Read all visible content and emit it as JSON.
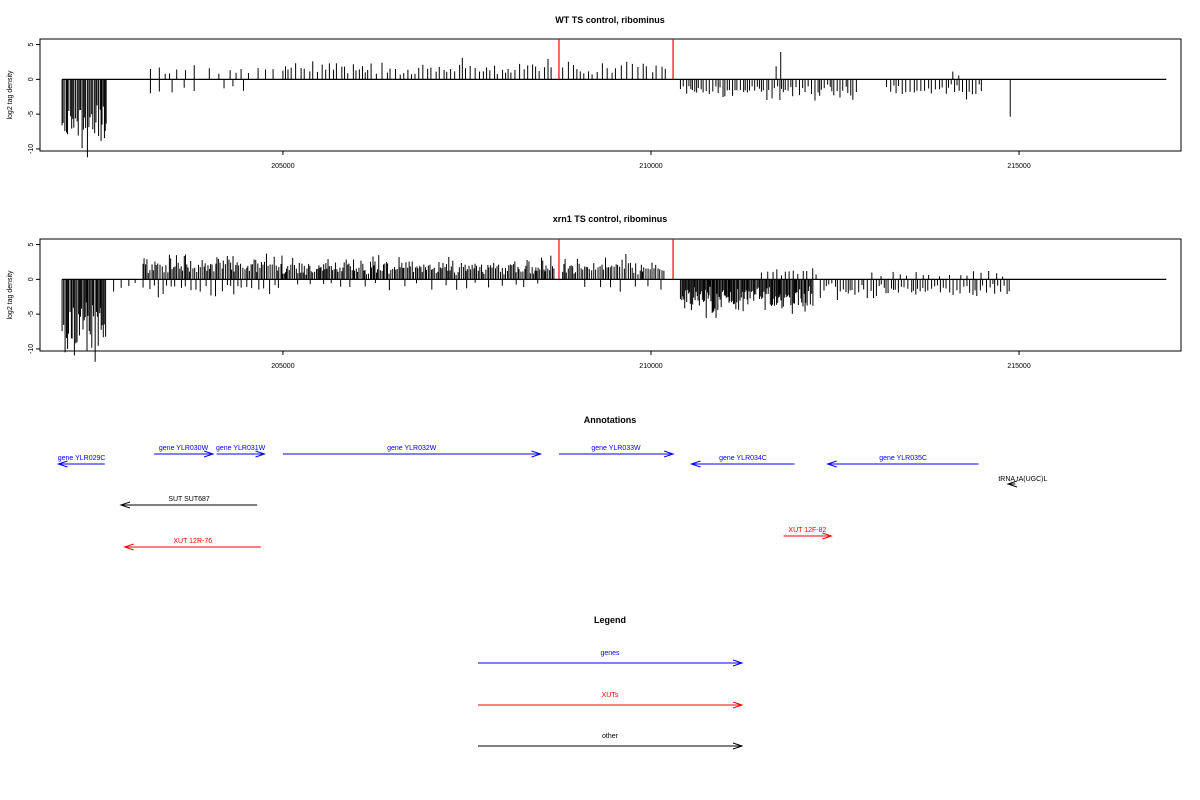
{
  "colors": {
    "gene": "#0000ff",
    "xut": "#ff0000",
    "other": "#000000",
    "highlight": "#ff0000",
    "axis": "#000000"
  },
  "chart_data": [
    {
      "type": "bar",
      "title": "WT TS control, ribominus",
      "ylabel": "log2 tag density",
      "xlabel": "",
      "xlim": [
        201700,
        217200
      ],
      "ylim": [
        -10.3,
        5.8
      ],
      "xticks": [
        205000,
        210000,
        215000
      ],
      "yticks": [
        5,
        0,
        -5,
        -10
      ],
      "grid": false,
      "highlights": [
        208750,
        210300
      ],
      "segments": [
        {
          "from": 202000,
          "to": 202600,
          "sign": -1,
          "base": 6.5,
          "amp": 3,
          "step": 18
        },
        {
          "from": 203200,
          "to": 203800,
          "sign": 1,
          "base": 1.2,
          "amp": 1.4,
          "step": 90
        },
        {
          "from": 203200,
          "to": 203800,
          "sign": -1,
          "base": 1.2,
          "amp": 1.0,
          "step": 130
        },
        {
          "from": 204000,
          "to": 204900,
          "sign": 1,
          "base": 1.0,
          "amp": 1.5,
          "step": 110
        },
        {
          "from": 204200,
          "to": 204500,
          "sign": -1,
          "base": 1.2,
          "amp": 1.0,
          "step": 120
        },
        {
          "from": 205000,
          "to": 208700,
          "sign": 1,
          "base": 1.2,
          "amp": 1.8,
          "step": 55
        },
        {
          "from": 208800,
          "to": 210200,
          "sign": 1,
          "base": 1.2,
          "amp": 1.8,
          "step": 65
        },
        {
          "from": 210400,
          "to": 212800,
          "sign": -1,
          "base": 1.2,
          "amp": 2.0,
          "step": 35
        },
        {
          "from": 211700,
          "to": 211800,
          "sign": 1,
          "base": 2.8,
          "amp": 0.2,
          "step": 60
        },
        {
          "from": 213200,
          "to": 214500,
          "sign": -1,
          "base": 1.2,
          "amp": 1.8,
          "step": 45
        },
        {
          "from": 214100,
          "to": 214200,
          "sign": 1,
          "base": 0.8,
          "amp": 0.3,
          "step": 80
        },
        {
          "from": 214880,
          "to": 214900,
          "sign": -1,
          "base": 4.6,
          "amp": 0.1,
          "step": 40
        }
      ]
    },
    {
      "type": "bar",
      "title": "xrn1 TS control, ribominus",
      "ylabel": "log2 tag density",
      "xlabel": "",
      "xlim": [
        201700,
        217200
      ],
      "ylim": [
        -10.3,
        5.8
      ],
      "xticks": [
        205000,
        210000,
        215000
      ],
      "yticks": [
        5,
        0,
        -5,
        -10
      ],
      "grid": false,
      "highlights": [
        208750,
        210300
      ],
      "segments": [
        {
          "from": 202000,
          "to": 202600,
          "sign": -1,
          "base": 6.5,
          "amp": 3.2,
          "step": 16
        },
        {
          "from": 202700,
          "to": 203100,
          "sign": -1,
          "base": 1.0,
          "amp": 1.0,
          "step": 90
        },
        {
          "from": 203100,
          "to": 205000,
          "sign": 1,
          "base": 1.5,
          "amp": 2.6,
          "step": 22
        },
        {
          "from": 203100,
          "to": 205000,
          "sign": -1,
          "base": 1.0,
          "amp": 1.8,
          "step": 70
        },
        {
          "from": 205000,
          "to": 208700,
          "sign": 1,
          "base": 1.2,
          "amp": 2.3,
          "step": 20
        },
        {
          "from": 205200,
          "to": 208500,
          "sign": -1,
          "base": 0.8,
          "amp": 0.8,
          "step": 160
        },
        {
          "from": 208800,
          "to": 210200,
          "sign": 1,
          "base": 1.2,
          "amp": 2.2,
          "step": 24
        },
        {
          "from": 209100,
          "to": 210200,
          "sign": -1,
          "base": 0.8,
          "amp": 2.0,
          "step": 180
        },
        {
          "from": 210400,
          "to": 212200,
          "sign": -1,
          "base": 2.0,
          "amp": 3.5,
          "step": 14
        },
        {
          "from": 211500,
          "to": 212300,
          "sign": 1,
          "base": 0.8,
          "amp": 1.5,
          "step": 70
        },
        {
          "from": 212300,
          "to": 214900,
          "sign": -1,
          "base": 1.0,
          "amp": 2.2,
          "step": 38
        },
        {
          "from": 213000,
          "to": 214800,
          "sign": 1,
          "base": 0.5,
          "amp": 0.8,
          "step": 120
        }
      ]
    }
  ],
  "annotations": {
    "title": "Annotations",
    "features": [
      {
        "label": "gene YLR029C",
        "category": "gene",
        "start": 201950,
        "end": 202580,
        "strand": "-",
        "row": 1
      },
      {
        "label": "gene YLR030W",
        "category": "gene",
        "start": 203250,
        "end": 204050,
        "strand": "+",
        "row": 0
      },
      {
        "label": "gene YLR031W",
        "category": "gene",
        "start": 204100,
        "end": 204750,
        "strand": "+",
        "row": 0
      },
      {
        "label": "gene YLR032W",
        "category": "gene",
        "start": 205000,
        "end": 208500,
        "strand": "+",
        "row": 0
      },
      {
        "label": "gene YLR033W",
        "category": "gene",
        "start": 208750,
        "end": 210300,
        "strand": "+",
        "row": 0
      },
      {
        "label": "gene YLR034C",
        "category": "gene",
        "start": 210550,
        "end": 211950,
        "strand": "-",
        "row": 1
      },
      {
        "label": "gene YLR035C",
        "category": "gene",
        "start": 212400,
        "end": 214450,
        "strand": "-",
        "row": 1
      },
      {
        "label": "tRNA tA(UGC)L",
        "category": "other",
        "start": 214850,
        "end": 214950,
        "strand": "-",
        "row": 2
      },
      {
        "label": "SUT SUT687",
        "category": "other",
        "start": 202800,
        "end": 204650,
        "strand": "-",
        "row": 3
      },
      {
        "label": "XUT 12R-76",
        "category": "xut",
        "start": 202850,
        "end": 204700,
        "strand": "-",
        "row": 4
      },
      {
        "label": "XUT 12F-82",
        "category": "xut",
        "start": 211800,
        "end": 212450,
        "strand": "+",
        "row": 5
      }
    ]
  },
  "legend": {
    "title": "Legend",
    "items": [
      {
        "label": "genes",
        "category": "gene"
      },
      {
        "label": "XUTs",
        "category": "xut"
      },
      {
        "label": "other",
        "category": "other"
      }
    ]
  }
}
